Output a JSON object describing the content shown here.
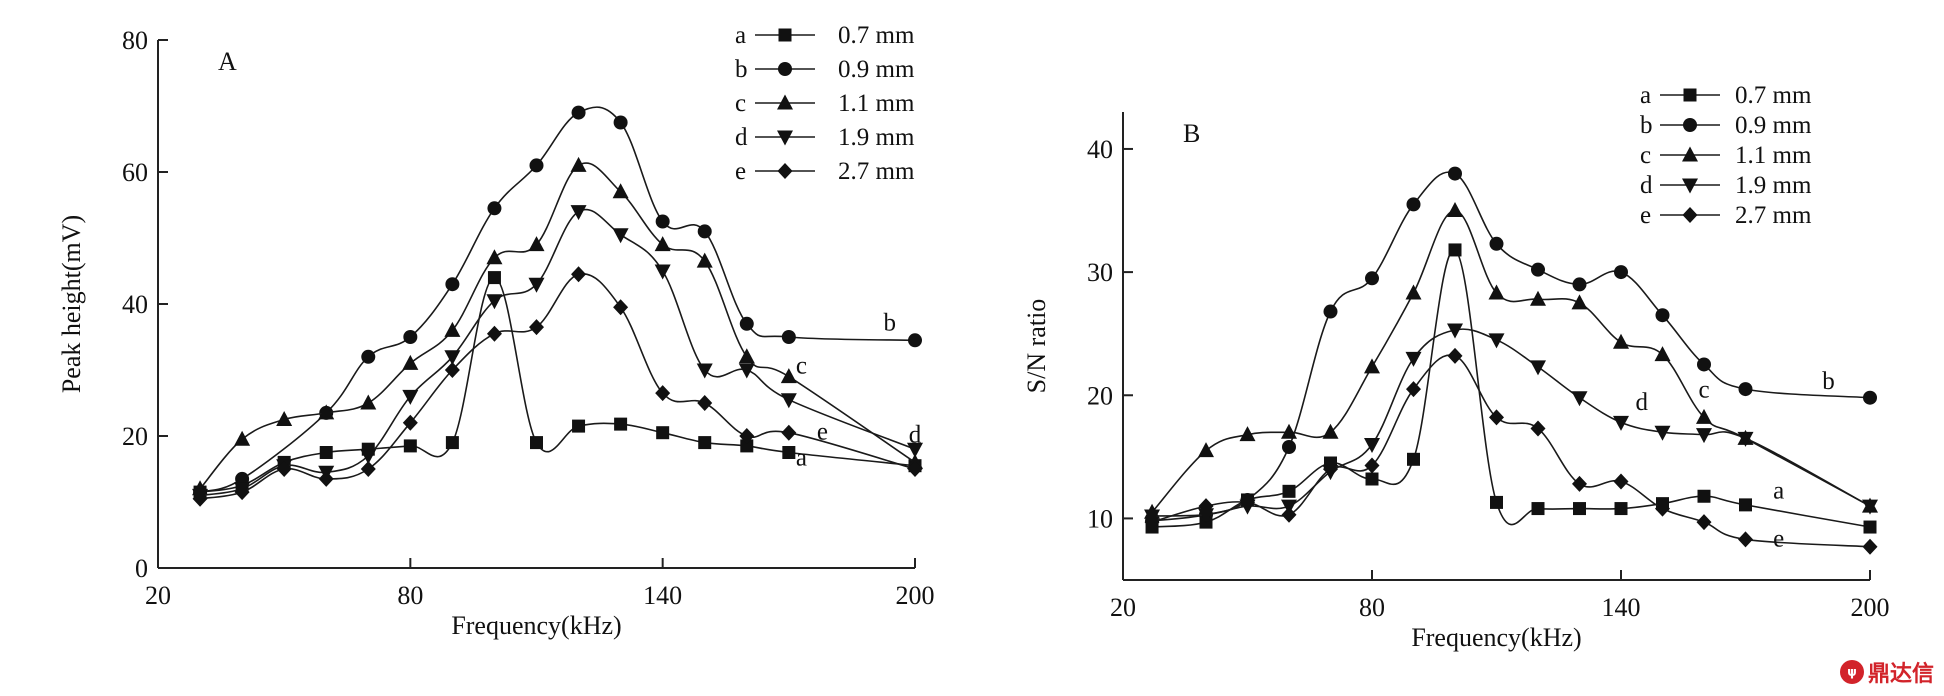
{
  "chart_data": [
    {
      "type": "line",
      "panel_label": "A",
      "xlabel": "Frequency(kHz)",
      "ylabel": "Peak height(mV)",
      "xlim": [
        20,
        200
      ],
      "ylim": [
        0,
        80
      ],
      "xticks": [
        20,
        80,
        140,
        200
      ],
      "yticks": [
        0,
        20,
        40,
        60,
        80
      ],
      "grid": false,
      "legend_placement": "top-right",
      "series": [
        {
          "name": "0.7 mm",
          "letter": "a",
          "marker": "square",
          "x": [
            30,
            40,
            50,
            60,
            70,
            80,
            90,
            100,
            110,
            120,
            130,
            140,
            150,
            160,
            170,
            200
          ],
          "y": [
            11.5,
            12.5,
            16,
            17.5,
            18,
            18.5,
            19,
            44,
            19,
            21.5,
            21.8,
            20.5,
            19,
            18.5,
            17.5,
            15.5
          ]
        },
        {
          "name": "0.9 mm",
          "letter": "b",
          "marker": "circle",
          "x": [
            30,
            40,
            60,
            70,
            80,
            90,
            100,
            110,
            120,
            130,
            140,
            150,
            160,
            170,
            200
          ],
          "y": [
            11.5,
            13.5,
            23.5,
            32,
            35,
            43,
            54.5,
            61,
            69,
            67.5,
            52.5,
            51,
            37,
            35,
            34.5
          ]
        },
        {
          "name": "1.1 mm",
          "letter": "c",
          "marker": "triangle-up",
          "x": [
            30,
            40,
            50,
            60,
            70,
            80,
            90,
            100,
            110,
            120,
            130,
            140,
            150,
            160,
            170,
            200
          ],
          "y": [
            12,
            19.5,
            22.5,
            23.5,
            25,
            31,
            36,
            47,
            49,
            61,
            57,
            49,
            46.5,
            32,
            29,
            16
          ]
        },
        {
          "name": "1.9 mm",
          "letter": "d",
          "marker": "triangle-down",
          "x": [
            30,
            40,
            50,
            60,
            70,
            80,
            90,
            100,
            110,
            120,
            130,
            140,
            150,
            160,
            170,
            200
          ],
          "y": [
            11,
            12,
            15.5,
            14.5,
            17,
            26,
            32,
            40.5,
            43,
            54,
            50.5,
            45,
            30,
            30,
            25.5,
            18
          ]
        },
        {
          "name": "2.7 mm",
          "letter": "e",
          "marker": "diamond",
          "x": [
            30,
            40,
            50,
            60,
            70,
            80,
            90,
            100,
            110,
            120,
            130,
            140,
            150,
            160,
            170,
            200
          ],
          "y": [
            10.5,
            11.5,
            15,
            13.5,
            15,
            22,
            30,
            35.5,
            36.5,
            44.5,
            39.5,
            26.5,
            25,
            20,
            20.5,
            15
          ]
        }
      ],
      "curve_labels": [
        {
          "text": "b",
          "x": 194,
          "y": 36
        },
        {
          "text": "c",
          "x": 173,
          "y": 29.5
        },
        {
          "text": "e",
          "x": 178,
          "y": 19.5
        },
        {
          "text": "a",
          "x": 173,
          "y": 15.5
        },
        {
          "text": "d",
          "x": 200,
          "y": 19
        }
      ]
    },
    {
      "type": "line",
      "panel_label": "B",
      "xlabel": "Frequency(kHz)",
      "ylabel": "S/N ratio",
      "xlim": [
        20,
        200
      ],
      "ylim": [
        5,
        43
      ],
      "xticks": [
        20,
        80,
        140,
        200
      ],
      "yticks": [
        10,
        20,
        30,
        40
      ],
      "grid": false,
      "legend_placement": "top-right",
      "series": [
        {
          "name": "0.7 mm",
          "letter": "a",
          "marker": "square",
          "x": [
            27,
            40,
            50,
            60,
            70,
            80,
            90,
            100,
            110,
            120,
            130,
            140,
            150,
            160,
            170,
            200
          ],
          "y": [
            9.3,
            9.7,
            11.5,
            12.2,
            14.5,
            13.2,
            14.8,
            31.8,
            11.3,
            10.8,
            10.8,
            10.8,
            11.2,
            11.8,
            11.1,
            9.3
          ]
        },
        {
          "name": "0.9 mm",
          "letter": "b",
          "marker": "circle",
          "x": [
            27,
            40,
            50,
            60,
            70,
            80,
            90,
            100,
            110,
            120,
            130,
            140,
            150,
            160,
            170,
            200
          ],
          "y": [
            9.8,
            10.3,
            11.5,
            15.8,
            26.8,
            29.5,
            35.5,
            38,
            32.3,
            30.2,
            29,
            30,
            26.5,
            22.5,
            20.5,
            19.8
          ]
        },
        {
          "name": "1.1 mm",
          "letter": "c",
          "marker": "triangle-up",
          "x": [
            27,
            40,
            50,
            60,
            70,
            80,
            90,
            100,
            110,
            120,
            130,
            140,
            150,
            160,
            170,
            200
          ],
          "y": [
            10.5,
            15.5,
            16.8,
            17,
            17,
            22.3,
            28.3,
            35,
            28.3,
            27.8,
            27.5,
            24.3,
            23.3,
            18.2,
            16.5,
            11
          ]
        },
        {
          "name": "1.9 mm",
          "letter": "d",
          "marker": "triangle-down",
          "x": [
            27,
            40,
            50,
            60,
            70,
            80,
            90,
            100,
            110,
            120,
            130,
            140,
            150,
            160,
            170,
            200
          ],
          "y": [
            10.2,
            10.3,
            11,
            11,
            13.8,
            16,
            23,
            25.3,
            24.5,
            22.3,
            19.8,
            17.8,
            17,
            16.8,
            16.5,
            11
          ]
        },
        {
          "name": "2.7 mm",
          "letter": "e",
          "marker": "diamond",
          "x": [
            27,
            40,
            50,
            60,
            70,
            80,
            90,
            100,
            110,
            120,
            130,
            140,
            150,
            160,
            170,
            200
          ],
          "y": [
            9.7,
            11,
            11.3,
            10.3,
            14,
            14.3,
            20.5,
            23.2,
            18.2,
            17.3,
            12.8,
            13,
            10.8,
            9.7,
            8.3,
            7.7
          ]
        }
      ],
      "curve_labels": [
        {
          "text": "b",
          "x": 190,
          "y": 20.5
        },
        {
          "text": "c",
          "x": 160,
          "y": 19.8
        },
        {
          "text": "d",
          "x": 145,
          "y": 18.8
        },
        {
          "text": "a",
          "x": 178,
          "y": 11.6
        },
        {
          "text": "e",
          "x": 178,
          "y": 7.7
        }
      ]
    }
  ],
  "watermark": {
    "text": "鼎达信",
    "badge": "ψ"
  }
}
